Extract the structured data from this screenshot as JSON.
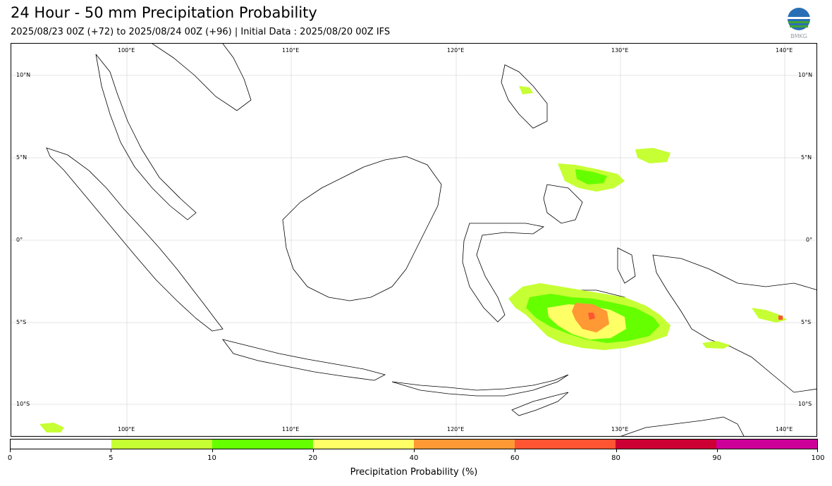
{
  "header": {
    "title": "24 Hour - 50 mm Precipitation Probability",
    "subtitle": "2025/08/23 00Z (+72) to 2025/08/24 00Z (+96) | Initial Data : 2025/08/20 00Z IFS",
    "logo_text": "BMKG",
    "logo_icon": "bmkg-logo-icon"
  },
  "map": {
    "longitude_labels": [
      "100°E",
      "110°E",
      "120°E",
      "130°E",
      "140°E"
    ],
    "latitude_labels": [
      "10°N",
      "5°N",
      "0°",
      "5°S",
      "10°S"
    ],
    "grid": true,
    "land_color": "#ffffff",
    "coastline_color": "#000000"
  },
  "colorbar": {
    "title": "Precipitation Probability (%)",
    "boundaries": [
      "0",
      "5",
      "10",
      "20",
      "40",
      "60",
      "80",
      "90",
      "100"
    ],
    "colors": [
      "#ffffff",
      "#c6ff33",
      "#66ff00",
      "#ffff66",
      "#ff9933",
      "#ff5533",
      "#cc0033",
      "#cc0099"
    ]
  }
}
